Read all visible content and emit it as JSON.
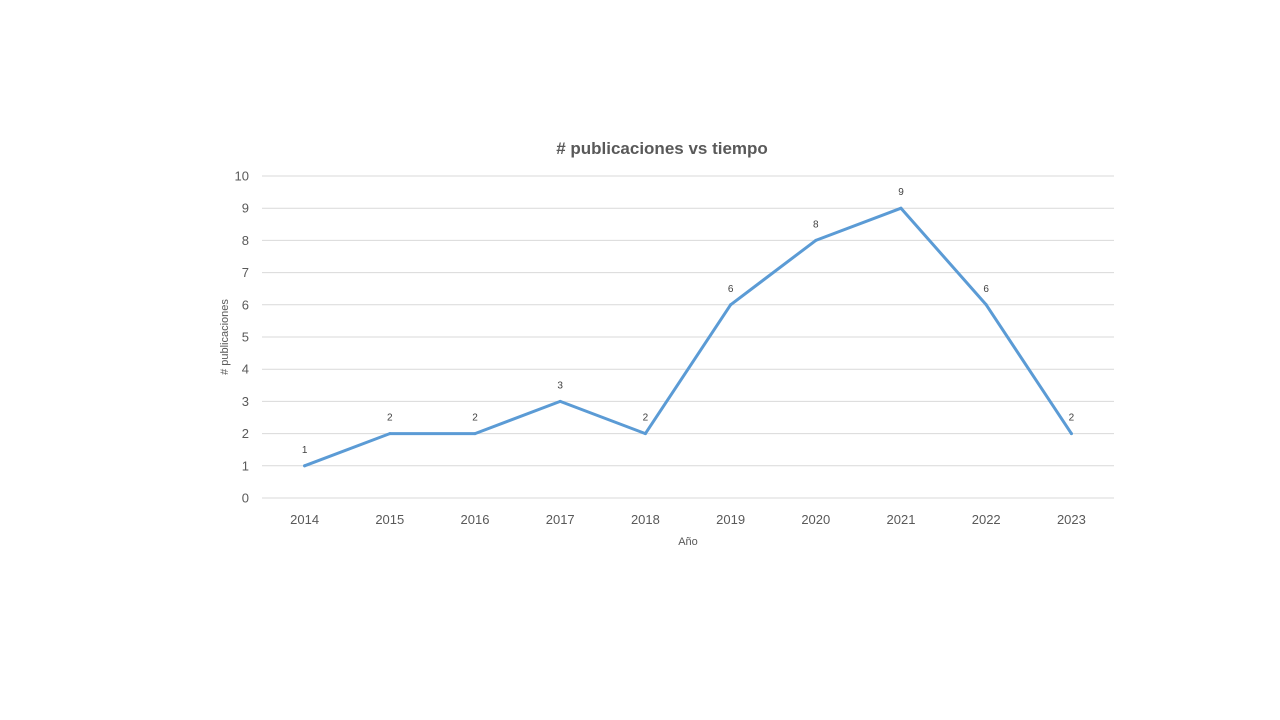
{
  "chart_data": {
    "type": "line",
    "title": "# publicaciones vs tiempo",
    "xlabel": "Año",
    "ylabel": "# publicaciones",
    "categories": [
      "2014",
      "2015",
      "2016",
      "2017",
      "2018",
      "2019",
      "2020",
      "2021",
      "2022",
      "2023"
    ],
    "series": [
      {
        "values": [
          1,
          2,
          2,
          3,
          2,
          6,
          8,
          9,
          6,
          2
        ],
        "color": "#5b9bd5"
      }
    ],
    "ylim": [
      0,
      10
    ],
    "yticks": [
      "0",
      "1",
      "2",
      "3",
      "4",
      "5",
      "6",
      "7",
      "8",
      "9",
      "10"
    ],
    "grid": true,
    "legend": "none",
    "data_labels": true
  }
}
